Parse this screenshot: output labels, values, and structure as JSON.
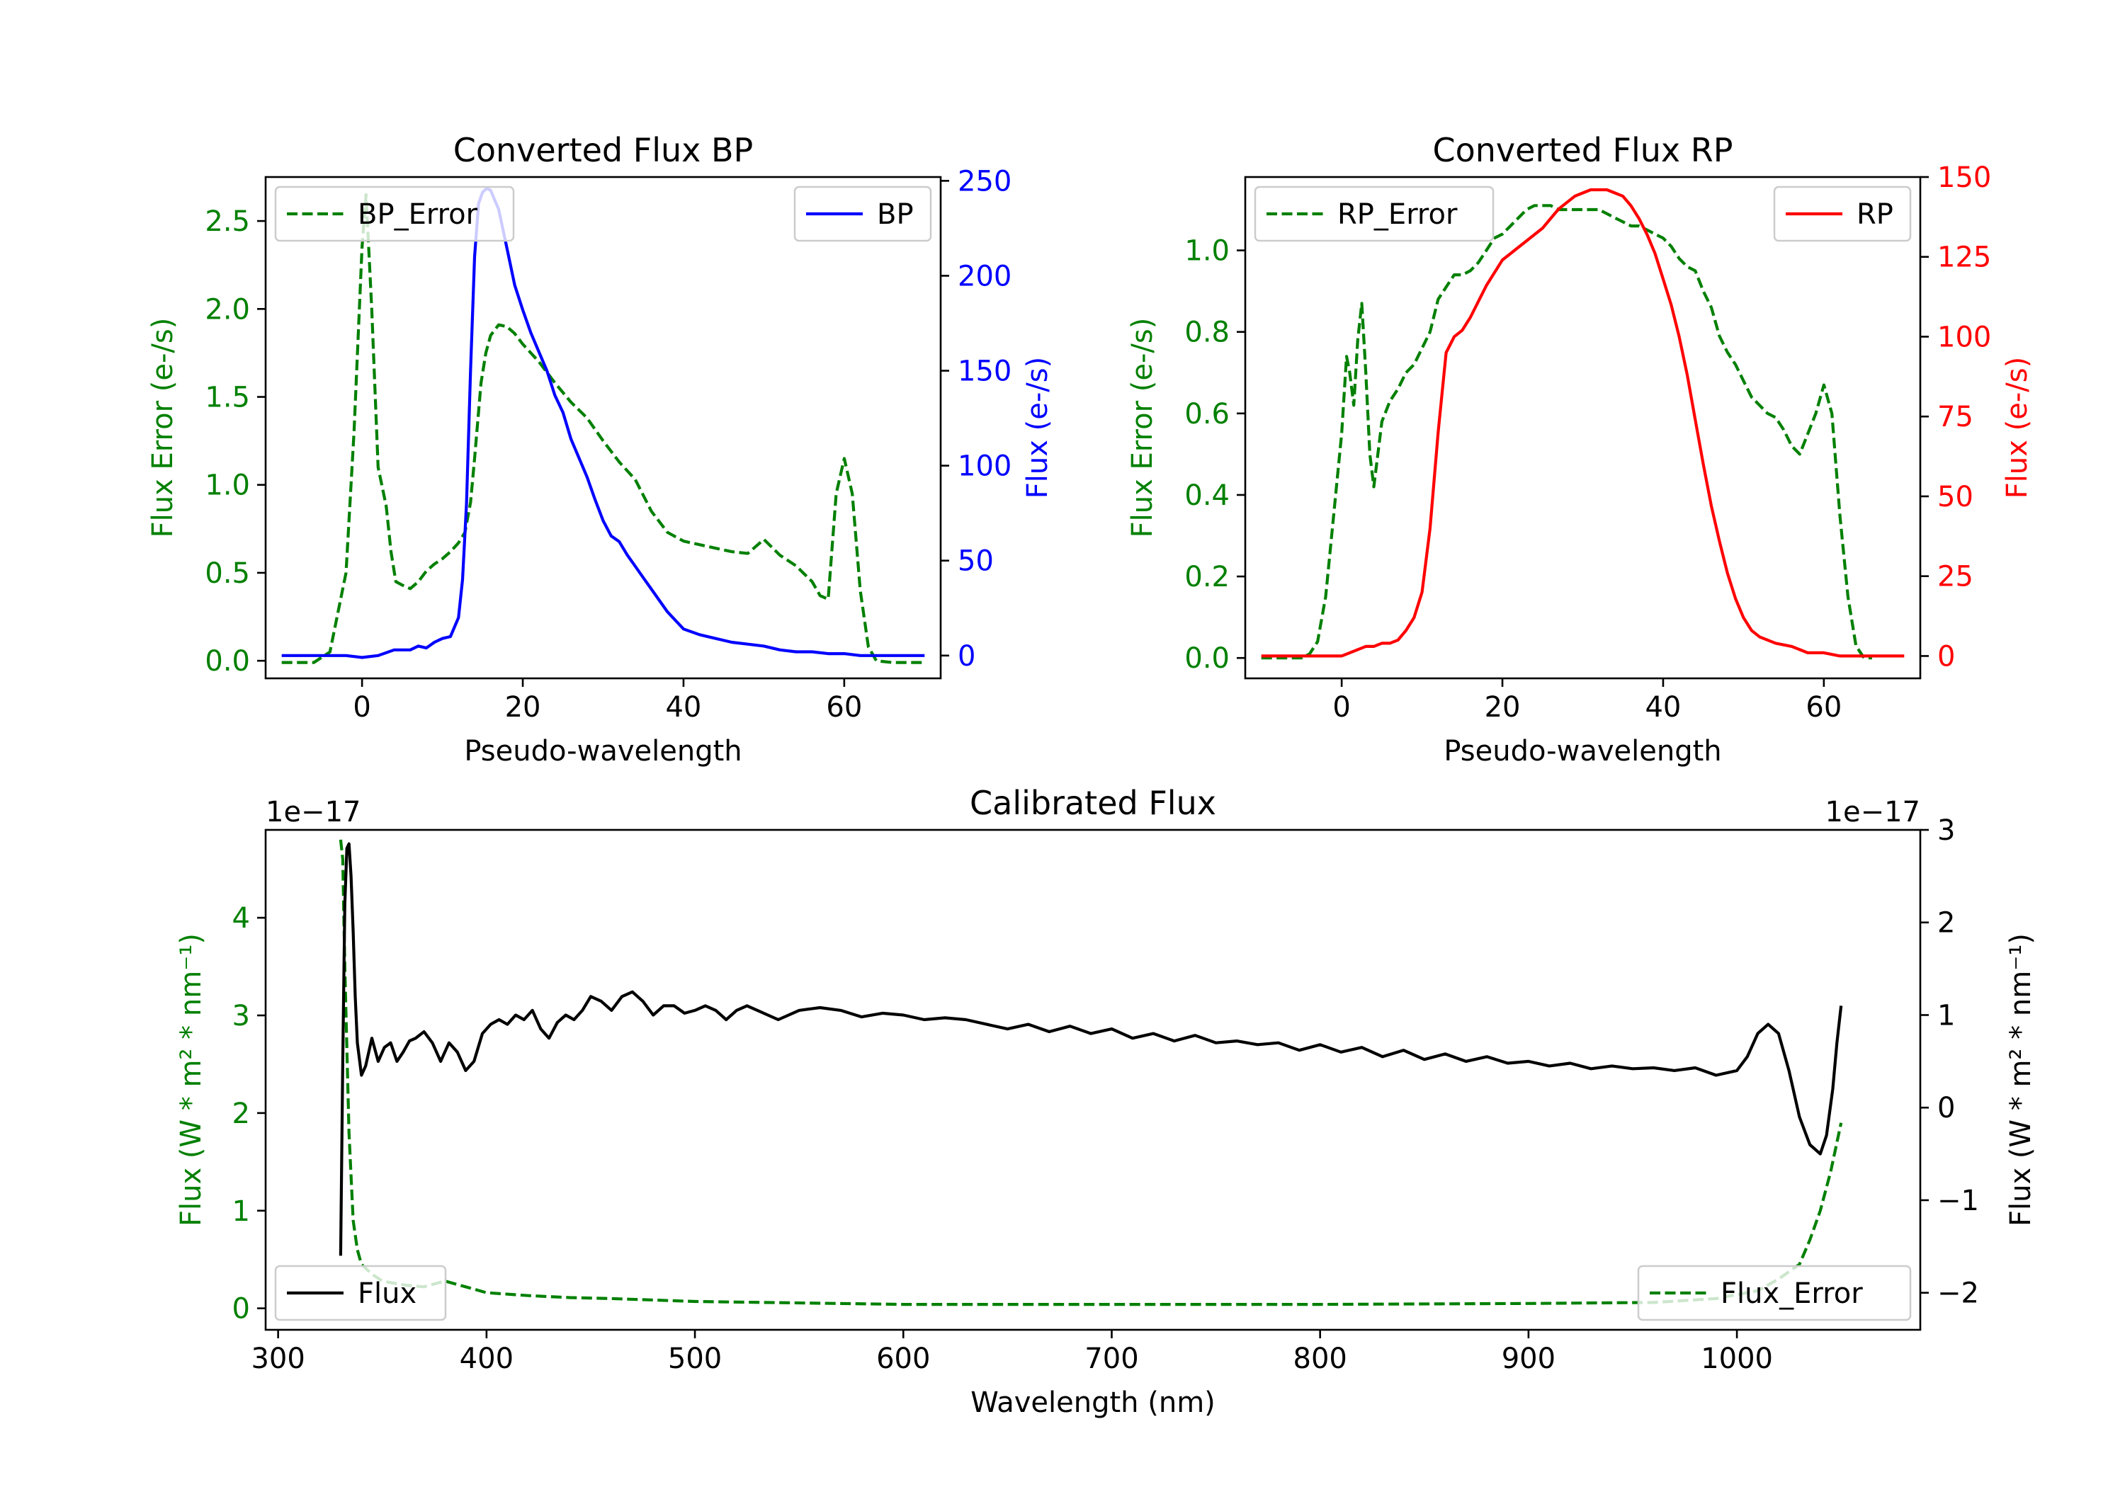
{
  "colors": {
    "flux_error": "#008000",
    "bp": "#0000ff",
    "rp": "#ff0000",
    "flux": "#000000"
  },
  "chart_data": [
    {
      "id": "bp",
      "type": "line",
      "title": "Converted Flux BP",
      "xlabel": "Pseudo-wavelength",
      "ylabel_left": "Flux Error (e-/s)",
      "ylabel_right": "Flux (e-/s)",
      "xlim": [
        -12,
        72
      ],
      "ylim_left": [
        -0.1,
        2.75
      ],
      "ylim_right": [
        -12,
        252
      ],
      "xticks": [
        0,
        20,
        40,
        60
      ],
      "yticks_left": [
        0.0,
        0.5,
        1.0,
        1.5,
        2.0,
        2.5
      ],
      "yticks_right": [
        0,
        50,
        100,
        150,
        200,
        250
      ],
      "left_tick_labels": [
        "0.0",
        "0.5",
        "1.0",
        "1.5",
        "2.0",
        "2.5"
      ],
      "legend_left": "BP_Error",
      "legend_right": "BP",
      "series": [
        {
          "name": "BP_Error",
          "axis": "left",
          "style": "dashed",
          "x": [
            -10,
            -6,
            -4,
            -2,
            -1,
            0,
            0.5,
            1.2,
            2,
            3,
            3.6,
            4.2,
            5,
            6,
            7,
            8,
            9,
            10,
            11,
            12,
            12.8,
            13.5,
            14,
            14.8,
            15.4,
            16,
            17,
            18,
            19,
            20,
            22,
            24,
            26,
            28,
            30,
            32,
            34,
            36,
            38,
            40,
            42,
            44,
            46,
            48,
            50,
            52,
            54,
            56,
            57,
            58,
            59,
            60,
            61,
            62,
            63,
            64,
            66,
            68,
            70
          ],
          "values": [
            -0.01,
            -0.01,
            0.05,
            0.5,
            1.3,
            2.35,
            2.65,
            2.0,
            1.1,
            0.88,
            0.62,
            0.45,
            0.43,
            0.41,
            0.45,
            0.51,
            0.55,
            0.58,
            0.62,
            0.67,
            0.73,
            0.9,
            1.15,
            1.58,
            1.75,
            1.85,
            1.91,
            1.9,
            1.86,
            1.8,
            1.7,
            1.58,
            1.47,
            1.38,
            1.25,
            1.13,
            1.03,
            0.85,
            0.73,
            0.68,
            0.66,
            0.64,
            0.62,
            0.61,
            0.69,
            0.6,
            0.54,
            0.45,
            0.37,
            0.35,
            0.95,
            1.15,
            0.95,
            0.4,
            0.08,
            0.0,
            -0.01,
            -0.01,
            -0.01
          ]
        },
        {
          "name": "BP",
          "axis": "right",
          "style": "solid",
          "x": [
            -10,
            -6,
            -4,
            -2,
            0,
            2,
            4,
            6,
            7,
            8,
            9,
            10,
            11,
            12,
            12.5,
            13,
            13.5,
            14,
            14.5,
            15,
            15.5,
            16,
            16.5,
            17,
            17.5,
            18,
            19,
            20,
            21,
            22,
            23,
            24,
            25,
            26,
            27,
            28,
            29,
            30,
            31,
            32,
            33,
            34,
            35,
            36,
            37,
            38,
            40,
            42,
            44,
            46,
            48,
            50,
            52,
            54,
            56,
            58,
            60,
            62,
            64,
            66,
            68,
            70
          ],
          "values": [
            0,
            0,
            0,
            0,
            -1,
            0,
            3,
            3,
            5,
            4,
            7,
            9,
            10,
            20,
            40,
            80,
            150,
            210,
            238,
            244,
            246,
            245,
            240,
            235,
            225,
            215,
            195,
            182,
            170,
            160,
            150,
            137,
            128,
            114,
            104,
            94,
            82,
            71,
            63,
            60,
            53,
            47,
            41,
            35,
            29,
            23,
            14,
            11,
            9,
            7,
            6,
            5,
            3,
            2,
            2,
            1,
            1,
            0,
            0,
            0,
            0,
            0
          ]
        }
      ]
    },
    {
      "id": "rp",
      "type": "line",
      "title": "Converted Flux RP",
      "xlabel": "Pseudo-wavelength",
      "ylabel_left": "Flux Error (e-/s)",
      "ylabel_right": "Flux (e-/s)",
      "xlim": [
        -12,
        72
      ],
      "ylim_left": [
        -0.05,
        1.18
      ],
      "ylim_right": [
        -7,
        150
      ],
      "xticks": [
        0,
        20,
        40,
        60
      ],
      "yticks_left": [
        0.0,
        0.2,
        0.4,
        0.6,
        0.8,
        1.0
      ],
      "yticks_right": [
        0,
        25,
        50,
        75,
        100,
        125,
        150
      ],
      "left_tick_labels": [
        "0.0",
        "0.2",
        "0.4",
        "0.6",
        "0.8",
        "1.0"
      ],
      "legend_left": "RP_Error",
      "legend_right": "RP",
      "series": [
        {
          "name": "RP_Error",
          "axis": "left",
          "style": "dashed",
          "x": [
            -10,
            -5,
            -4,
            -3,
            -2,
            -1,
            0,
            0.6,
            1,
            1.5,
            2,
            2.5,
            3,
            3.5,
            4,
            5,
            6,
            7,
            8,
            9,
            10,
            11,
            12,
            13,
            14,
            15,
            16,
            17,
            18,
            19,
            20,
            21,
            22,
            23,
            24,
            25,
            26,
            27,
            28,
            29,
            30,
            31,
            32,
            33,
            34,
            35,
            36,
            37,
            38,
            39,
            40,
            41,
            42,
            43,
            44,
            45,
            46,
            47,
            48,
            49,
            50,
            51,
            52,
            53,
            54,
            55,
            56,
            57,
            58,
            59,
            60,
            61,
            62,
            63,
            64,
            65,
            66
          ],
          "values": [
            0.0,
            0.0,
            0.01,
            0.04,
            0.15,
            0.35,
            0.55,
            0.74,
            0.7,
            0.62,
            0.78,
            0.87,
            0.7,
            0.5,
            0.42,
            0.58,
            0.63,
            0.66,
            0.7,
            0.72,
            0.76,
            0.8,
            0.88,
            0.91,
            0.94,
            0.94,
            0.95,
            0.97,
            1.0,
            1.03,
            1.04,
            1.06,
            1.08,
            1.1,
            1.11,
            1.11,
            1.11,
            1.1,
            1.1,
            1.1,
            1.1,
            1.1,
            1.1,
            1.09,
            1.08,
            1.07,
            1.06,
            1.06,
            1.05,
            1.04,
            1.03,
            1.01,
            0.98,
            0.96,
            0.95,
            0.9,
            0.86,
            0.79,
            0.75,
            0.72,
            0.68,
            0.64,
            0.62,
            0.6,
            0.59,
            0.56,
            0.52,
            0.5,
            0.55,
            0.6,
            0.67,
            0.6,
            0.35,
            0.15,
            0.03,
            0.0,
            0.0
          ]
        },
        {
          "name": "RP",
          "axis": "right",
          "style": "solid",
          "x": [
            -10,
            -4,
            -2,
            0,
            1,
            2,
            3,
            4,
            5,
            6,
            7,
            8,
            9,
            10,
            11,
            12,
            13,
            14,
            15,
            16,
            17,
            18,
            19,
            20,
            21,
            22,
            23,
            24,
            25,
            26,
            27,
            28,
            29,
            30,
            31,
            32,
            33,
            34,
            35,
            36,
            37,
            38,
            39,
            40,
            41,
            42,
            43,
            44,
            45,
            46,
            47,
            48,
            49,
            50,
            51,
            52,
            54,
            56,
            58,
            60,
            62,
            64,
            66,
            68,
            70
          ],
          "values": [
            0,
            0,
            0,
            0,
            1,
            2,
            3,
            3,
            4,
            4,
            5,
            8,
            12,
            20,
            40,
            70,
            95,
            100,
            102,
            106,
            111,
            116,
            120,
            124,
            126,
            128,
            130,
            132,
            134,
            137,
            140,
            142,
            144,
            145,
            146,
            146,
            146,
            145,
            144,
            141,
            137,
            132,
            126,
            118,
            110,
            100,
            88,
            74,
            60,
            47,
            36,
            26,
            18,
            12,
            8,
            6,
            4,
            3,
            1,
            1,
            0,
            0,
            0,
            0,
            0
          ]
        }
      ]
    },
    {
      "id": "cal",
      "type": "line",
      "title": "Calibrated Flux",
      "xlabel": "Wavelength (nm)",
      "ylabel_left": "Flux (W * m² * nm⁻¹)",
      "ylabel_right": "Flux (W * m² * nm⁻¹)",
      "offset_left": "1e−17",
      "offset_right": "1e−17",
      "xlim": [
        294,
        1088
      ],
      "ylim_left": [
        -0.22,
        4.9
      ],
      "ylim_right": [
        -2.4,
        3.0
      ],
      "xticks": [
        300,
        400,
        500,
        600,
        700,
        800,
        900,
        1000
      ],
      "yticks_left": [
        0,
        1,
        2,
        3,
        4
      ],
      "yticks_right": [
        -2,
        -1,
        0,
        1,
        2,
        3
      ],
      "left_tick_labels": [
        "0",
        "1",
        "2",
        "3",
        "4"
      ],
      "right_tick_labels": [
        "−2",
        "−1",
        "0",
        "1",
        "2",
        "3"
      ],
      "legend_left": "Flux",
      "legend_right": "Flux_Error",
      "series": [
        {
          "name": "Flux_Error",
          "axis": "left",
          "style": "dashed",
          "x": [
            330,
            331,
            332,
            334,
            336,
            338,
            340,
            345,
            350,
            360,
            370,
            380,
            390,
            400,
            420,
            440,
            460,
            500,
            600,
            700,
            800,
            900,
            960,
            990,
            1010,
            1020,
            1030,
            1035,
            1040,
            1045,
            1050
          ],
          "values": [
            4.8,
            4.6,
            3.5,
            1.8,
            0.9,
            0.6,
            0.45,
            0.35,
            0.28,
            0.24,
            0.22,
            0.28,
            0.22,
            0.16,
            0.13,
            0.11,
            0.1,
            0.07,
            0.04,
            0.04,
            0.04,
            0.05,
            0.06,
            0.1,
            0.18,
            0.3,
            0.45,
            0.7,
            1.0,
            1.4,
            1.9
          ]
        },
        {
          "name": "Flux",
          "axis": "right",
          "style": "solid",
          "x": [
            330,
            331,
            332,
            333,
            334,
            335,
            336,
            337,
            338,
            340,
            342,
            345,
            348,
            351,
            354,
            357,
            360,
            363,
            366,
            370,
            374,
            378,
            382,
            386,
            390,
            394,
            398,
            402,
            406,
            410,
            414,
            418,
            422,
            426,
            430,
            434,
            438,
            442,
            446,
            450,
            455,
            460,
            465,
            470,
            475,
            480,
            485,
            490,
            495,
            500,
            505,
            510,
            515,
            520,
            525,
            530,
            540,
            550,
            560,
            570,
            580,
            590,
            600,
            610,
            620,
            630,
            640,
            650,
            660,
            670,
            680,
            690,
            700,
            710,
            720,
            730,
            740,
            750,
            760,
            770,
            780,
            790,
            800,
            810,
            820,
            830,
            840,
            850,
            860,
            870,
            880,
            890,
            900,
            910,
            920,
            930,
            940,
            950,
            960,
            970,
            980,
            990,
            1000,
            1005,
            1010,
            1015,
            1020,
            1025,
            1030,
            1035,
            1040,
            1043,
            1046,
            1048,
            1050
          ],
          "values": [
            -1.6,
            0.5,
            2.2,
            2.8,
            2.85,
            2.5,
            1.9,
            1.2,
            0.7,
            0.35,
            0.45,
            0.75,
            0.5,
            0.65,
            0.7,
            0.5,
            0.6,
            0.72,
            0.75,
            0.82,
            0.7,
            0.5,
            0.7,
            0.6,
            0.4,
            0.5,
            0.8,
            0.9,
            0.95,
            0.9,
            1.0,
            0.95,
            1.05,
            0.85,
            0.75,
            0.92,
            1.0,
            0.95,
            1.05,
            1.2,
            1.15,
            1.05,
            1.2,
            1.25,
            1.15,
            1.0,
            1.1,
            1.1,
            1.02,
            1.05,
            1.1,
            1.05,
            0.95,
            1.05,
            1.1,
            1.05,
            0.95,
            1.05,
            1.08,
            1.05,
            0.98,
            1.02,
            1.0,
            0.95,
            0.97,
            0.95,
            0.9,
            0.85,
            0.9,
            0.82,
            0.88,
            0.8,
            0.85,
            0.75,
            0.8,
            0.72,
            0.78,
            0.7,
            0.72,
            0.68,
            0.7,
            0.62,
            0.68,
            0.6,
            0.65,
            0.55,
            0.62,
            0.52,
            0.58,
            0.5,
            0.55,
            0.48,
            0.5,
            0.45,
            0.48,
            0.42,
            0.45,
            0.42,
            0.43,
            0.4,
            0.43,
            0.35,
            0.4,
            0.55,
            0.8,
            0.9,
            0.8,
            0.4,
            -0.1,
            -0.4,
            -0.5,
            -0.3,
            0.2,
            0.7,
            1.1
          ]
        }
      ]
    }
  ]
}
